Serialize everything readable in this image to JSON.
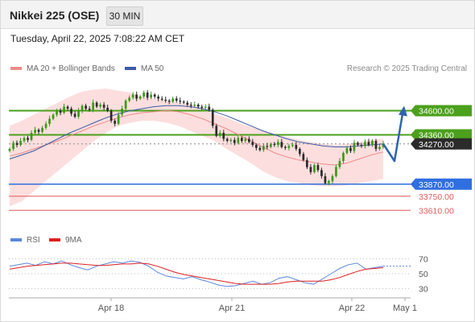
{
  "header": {
    "title": "Nikkei 225 (OSE)",
    "timeframe": "30 MIN"
  },
  "datetime": "Tuesday, April 22, 2025 7:08:22 AM CET",
  "credit": "Research © 2025 Trading Central",
  "colors": {
    "bollinger": "#f08a8a",
    "ma50": "#3b5ba8",
    "up_candle": "#3a9a1a",
    "down_candle": "#2b2b2b",
    "resistance": "#4ba01c",
    "pivot": "#2f6fe0",
    "support": "#e05a5a",
    "forecast_arrow": "#2f64b0",
    "rsi": "#5b86e0",
    "rsi_ma": "#dd2020"
  },
  "legend": {
    "bollinger_label": "MA 20 + Bollinger Bands",
    "ma50_label": "MA 50"
  },
  "rsi_legend": {
    "rsi_label": "RSI",
    "ma_label": "9MA"
  },
  "chart_data": [
    {
      "type": "candlestick",
      "title": "Nikkei 225 (OSE)",
      "interval": "30 MIN",
      "x_ticks": [
        "Apr 18",
        "Apr 21",
        "Apr 22",
        "May 1"
      ],
      "ylim": [
        33500,
        34900
      ],
      "levels": [
        {
          "value": 34600.0,
          "label": "34600.00",
          "kind": "resistance"
        },
        {
          "value": 34360.0,
          "label": "34360.00",
          "kind": "resistance"
        },
        {
          "value": 34270.0,
          "label": "34270.00",
          "kind": "last"
        },
        {
          "value": 33870.0,
          "label": "33870.00",
          "kind": "pivot"
        },
        {
          "value": 33750.0,
          "label": "33750.00",
          "kind": "support"
        },
        {
          "value": 33610.0,
          "label": "33610.00",
          "kind": "support"
        }
      ],
      "closes": [
        34220,
        34280,
        34260,
        34300,
        34330,
        34310,
        34380,
        34410,
        34390,
        34430,
        34470,
        34520,
        34560,
        34600,
        34580,
        34640,
        34620,
        34570,
        34540,
        34600,
        34650,
        34620,
        34610,
        34680,
        34640,
        34660,
        34630,
        34600,
        34500,
        34470,
        34560,
        34620,
        34700,
        34730,
        34760,
        34720,
        34740,
        34780,
        34730,
        34760,
        34740,
        34720,
        34710,
        34700,
        34690,
        34720,
        34700,
        34690,
        34680,
        34660,
        34650,
        34660,
        34640,
        34630,
        34640,
        34610,
        34450,
        34350,
        34380,
        34320,
        34300,
        34310,
        34280,
        34330,
        34300,
        34320,
        34290,
        34260,
        34230,
        34210,
        34250,
        34240,
        34270,
        34260,
        34290,
        34240,
        34230,
        34250,
        34260,
        34220,
        34170,
        34110,
        34040,
        33990,
        34060,
        34010,
        33950,
        33880,
        33900,
        33950,
        34040,
        34100,
        34180,
        34230,
        34200,
        34280,
        34260,
        34250,
        34290,
        34260,
        34300,
        34220,
        34240,
        34270
      ],
      "bollinger": {
        "ma20": [
          34150,
          34180,
          34220,
          34260,
          34300,
          34350,
          34400,
          34450,
          34490,
          34530,
          34560,
          34580,
          34590,
          34600,
          34590,
          34560,
          34520,
          34470,
          34420,
          34360,
          34300,
          34240,
          34180,
          34140,
          34110,
          34090,
          34070,
          34060,
          34080,
          34120,
          34160,
          34190
        ],
        "upper": [
          34450,
          34500,
          34560,
          34620,
          34680,
          34740,
          34790,
          34810,
          34820,
          34800,
          34780,
          34740,
          34720,
          34700,
          34680,
          34660,
          34620,
          34570,
          34530,
          34480,
          34440,
          34400,
          34370,
          34340,
          34310,
          34290,
          34270,
          34260,
          34270,
          34290,
          34310,
          34320
        ],
        "lower": [
          33650,
          33700,
          33800,
          33900,
          34000,
          34100,
          34200,
          34300,
          34380,
          34450,
          34480,
          34500,
          34500,
          34480,
          34450,
          34400,
          34350,
          34300,
          34220,
          34150,
          34080,
          34000,
          33940,
          33900,
          33880,
          33860,
          33850,
          33850,
          33860,
          33880,
          33900,
          33920
        ]
      },
      "ma50": [
        34120,
        34160,
        34200,
        34260,
        34320,
        34380,
        34430,
        34480,
        34530,
        34570,
        34600,
        34620,
        34640,
        34650,
        34650,
        34640,
        34620,
        34590,
        34550,
        34500,
        34450,
        34400,
        34360,
        34320,
        34290,
        34270,
        34250,
        34240,
        34240,
        34250,
        34260,
        34270
      ]
    },
    {
      "type": "line",
      "title": "RSI",
      "series": [
        {
          "name": "RSI",
          "values": [
            60,
            62,
            64,
            61,
            66,
            63,
            67,
            62,
            58,
            55,
            60,
            63,
            66,
            64,
            67,
            65,
            60,
            52,
            47,
            45,
            43,
            46,
            42,
            39,
            35,
            33,
            34,
            37,
            40,
            36,
            38,
            44,
            46,
            42,
            38,
            36,
            43,
            50,
            57,
            62,
            64,
            56,
            58,
            60
          ]
        },
        {
          "name": "9MA",
          "values": [
            56,
            58,
            60,
            61,
            62,
            63,
            64,
            64,
            63,
            62,
            61,
            61,
            62,
            63,
            63,
            64,
            63,
            60,
            56,
            52,
            49,
            47,
            45,
            43,
            41,
            39,
            37,
            36,
            36,
            36,
            36,
            37,
            39,
            40,
            40,
            40,
            40,
            42,
            45,
            49,
            53,
            56,
            57,
            58
          ]
        }
      ],
      "y_ticks": [
        70,
        50,
        30
      ],
      "ylim": [
        20,
        80
      ]
    }
  ]
}
